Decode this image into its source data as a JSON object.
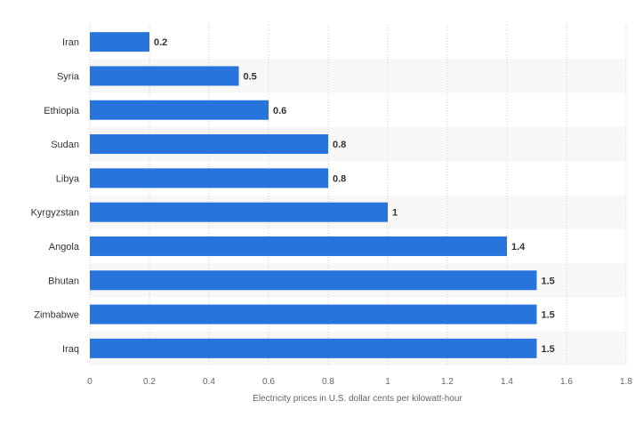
{
  "chart_data": {
    "type": "bar",
    "orientation": "horizontal",
    "categories": [
      "Iran",
      "Syria",
      "Ethiopia",
      "Sudan",
      "Libya",
      "Kyrgyzstan",
      "Angola",
      "Bhutan",
      "Zimbabwe",
      "Iraq"
    ],
    "values": [
      0.2,
      0.5,
      0.6,
      0.8,
      0.8,
      1,
      1.4,
      1.5,
      1.5,
      1.5
    ],
    "value_labels": [
      "0.2",
      "0.5",
      "0.6",
      "0.8",
      "0.8",
      "1",
      "1.4",
      "1.5",
      "1.5",
      "1.5"
    ],
    "xlabel": "Electricity prices in U.S. dollar cents per kilowatt-hour",
    "ylabel": "",
    "xlim": [
      0,
      1.8
    ],
    "x_ticks": [
      "0",
      "0.2",
      "0.4",
      "0.6",
      "0.8",
      "1",
      "1.2",
      "1.4",
      "1.6",
      "1.8"
    ],
    "grid": "vertical dotted",
    "alternating_row_bands": true,
    "colors": {
      "bar": "#2874dd",
      "row_band": "#f7f7f7",
      "gridline": "#d2d2d2",
      "category_text": "#333333",
      "value_text": "#333333",
      "tick_text": "#666666",
      "axis_title_text": "#666666"
    }
  }
}
